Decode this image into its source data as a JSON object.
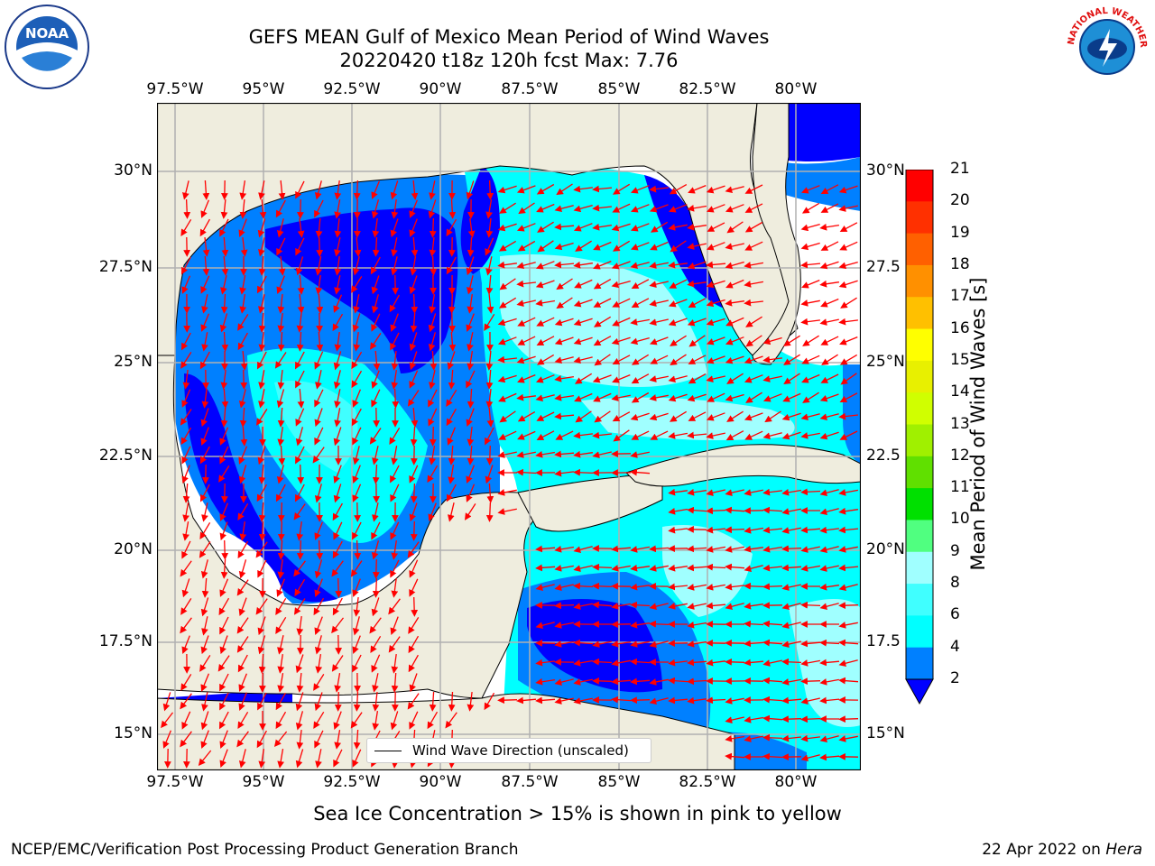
{
  "title": {
    "line1": "GEFS MEAN Gulf of Mexico Mean Period of Wind Waves",
    "line2": "20220420 t18z 120h fcst   Max: 7.76"
  },
  "map": {
    "lon_ticks": [
      "97.5°W",
      "95°W",
      "92.5°W",
      "90°W",
      "87.5°W",
      "85°W",
      "82.5°W",
      "80°W"
    ],
    "lat_ticks_left": [
      "30°N",
      "27.5°N",
      "25°N",
      "22.5°N",
      "20°N",
      "17.5°N",
      "15°N"
    ],
    "lat_ticks_right": [
      "30°N",
      "27.5",
      "25°N",
      "22.5",
      "20°N",
      "17.5",
      "15°N"
    ],
    "legend_label": "Wind Wave Direction (unscaled)",
    "land_color": "#efedde",
    "ocean_background": "#ffffff"
  },
  "colorbar": {
    "label": "Mean Period of Wind Waves [s]",
    "ticks": [
      "2",
      "4",
      "6",
      "8",
      "9",
      "10",
      "11",
      "12",
      "13",
      "14",
      "15",
      "16",
      "17",
      "18",
      "19",
      "20",
      "21"
    ],
    "colors": [
      "#0000ff",
      "#0080ff",
      "#00ffff",
      "#40ffff",
      "#a0ffff",
      "#50ff80",
      "#00e000",
      "#60e000",
      "#a0f000",
      "#d0ff00",
      "#e8f000",
      "#ffff00",
      "#ffc000",
      "#ff9000",
      "#ff6000",
      "#ff3000",
      "#ff0000"
    ]
  },
  "notes": {
    "sea_ice": "Sea Ice Concentration > 15% is shown in pink to yellow"
  },
  "footer": {
    "left": "NCEP/EMC/Verification Post Processing Product Generation Branch",
    "date": "22 Apr 2022 on ",
    "machine": "Hera"
  },
  "logos": {
    "noaa": "NOAA",
    "nws": "NATIONAL WEATHER SERVICE"
  }
}
